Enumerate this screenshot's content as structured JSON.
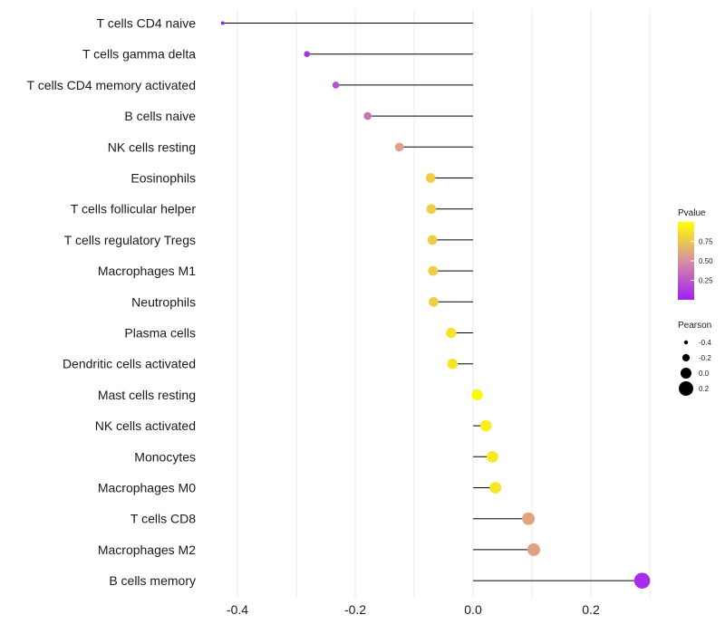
{
  "chart_data": {
    "type": "lollipop",
    "title": "",
    "xlabel": "",
    "ylabel": "",
    "xlim": [
      -0.42,
      0.29
    ],
    "xticks": [
      -0.4,
      -0.2,
      0.0,
      0.2
    ],
    "xtick_labels": [
      "-0.4",
      "-0.2",
      "0.0",
      "0.2"
    ],
    "grid": true,
    "categories": [
      "T cells CD4 naive",
      "T cells gamma delta",
      "T cells CD4 memory activated",
      "B cells naive",
      "NK cells resting",
      "Eosinophils",
      "T cells follicular helper",
      "T cells regulatory  Tregs ",
      "Macrophages M1",
      "Neutrophils",
      "Plasma cells",
      "Dendritic cells activated",
      "Mast cells resting",
      "NK cells activated",
      "Monocytes",
      "Macrophages M0",
      "T cells CD8",
      "Macrophages M2",
      "B cells memory"
    ],
    "values": [
      -0.425,
      -0.282,
      -0.233,
      -0.179,
      -0.125,
      -0.072,
      -0.071,
      -0.069,
      -0.068,
      -0.067,
      -0.037,
      -0.035,
      0.007,
      0.022,
      0.033,
      0.038,
      0.094,
      0.103,
      0.287
    ],
    "pvalues": [
      0.0,
      0.09,
      0.22,
      0.37,
      0.58,
      0.78,
      0.78,
      0.78,
      0.78,
      0.78,
      0.88,
      0.88,
      0.97,
      0.93,
      0.9,
      0.89,
      0.6,
      0.58,
      0.06
    ],
    "color_legend": {
      "title": "Pvalue",
      "ticks": [
        0.25,
        0.5,
        0.75
      ],
      "tick_labels": [
        "0.25",
        "0.50",
        "0.75"
      ],
      "range": [
        0.0,
        1.0
      ],
      "colors": [
        "#a020f0",
        "#d88fa0",
        "#ffff00"
      ]
    },
    "size_legend": {
      "title": "Pearson",
      "values": [
        -0.4,
        -0.2,
        0.0,
        0.2
      ],
      "labels": [
        "-0.4",
        "-0.2",
        "0.0",
        "0.2"
      ]
    }
  }
}
